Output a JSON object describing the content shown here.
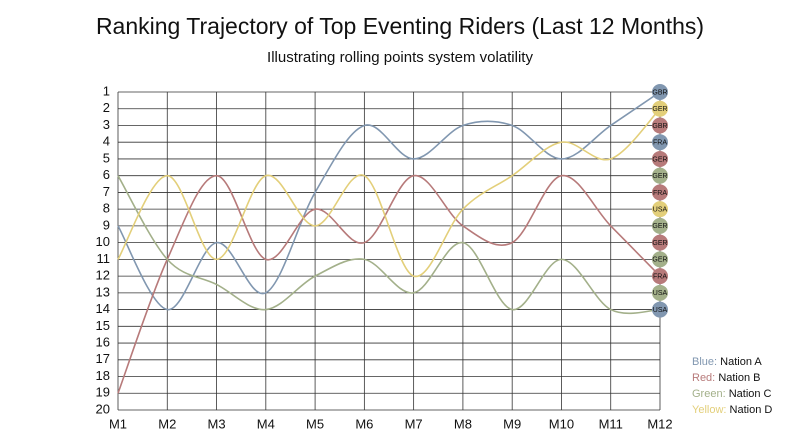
{
  "chart_data": {
    "type": "line",
    "title": "Ranking Trajectory of Top Eventing Riders (Last 12 Months)",
    "subtitle": "Illustrating rolling points system volatility",
    "categories": [
      "M1",
      "M2",
      "M3",
      "M4",
      "M5",
      "M6",
      "M7",
      "M8",
      "M9",
      "M10",
      "M11",
      "M12"
    ],
    "ylim": [
      1,
      20
    ],
    "yticks": [
      1,
      2,
      3,
      4,
      5,
      6,
      7,
      8,
      9,
      10,
      11,
      12,
      13,
      14,
      15,
      16,
      17,
      18,
      19,
      20
    ],
    "y_inverted": true,
    "grid": true,
    "series": [
      {
        "name": "Nation A",
        "color_label": "Blue:",
        "color": "#8197b0",
        "values": [
          9,
          14,
          10,
          13,
          7,
          3,
          5,
          3,
          3,
          5,
          3,
          1
        ]
      },
      {
        "name": "Nation B",
        "color_label": "Red:",
        "color": "#b77a7a",
        "values": [
          19,
          11,
          6,
          11,
          8,
          10,
          6,
          9,
          10,
          6,
          9,
          12
        ]
      },
      {
        "name": "Nation C",
        "color_label": "Green:",
        "color": "#a3b08a",
        "values": [
          6,
          11,
          12.5,
          14,
          12,
          11,
          13,
          10,
          14,
          11,
          14,
          14
        ]
      },
      {
        "name": "Nation D",
        "color_label": "Yellow:",
        "color": "#e3cf7a",
        "values": [
          11,
          6,
          11,
          6,
          9,
          6,
          12,
          8,
          6,
          4,
          5,
          2
        ]
      }
    ],
    "end_markers": [
      {
        "label": "GBR",
        "rank": 1,
        "color": "#8197b0"
      },
      {
        "label": "GER",
        "rank": 2,
        "color": "#e3cf7a"
      },
      {
        "label": "GBR",
        "rank": 3,
        "color": "#b77a7a"
      },
      {
        "label": "FRA",
        "rank": 4,
        "color": "#8197b0"
      },
      {
        "label": "GER",
        "rank": 5,
        "color": "#b77a7a"
      },
      {
        "label": "GER",
        "rank": 6,
        "color": "#a3b08a"
      },
      {
        "label": "FRA",
        "rank": 7,
        "color": "#b77a7a"
      },
      {
        "label": "USA",
        "rank": 8,
        "color": "#e3cf7a"
      },
      {
        "label": "GER",
        "rank": 9,
        "color": "#a3b08a"
      },
      {
        "label": "GER",
        "rank": 10,
        "color": "#b77a7a"
      },
      {
        "label": "GER",
        "rank": 11,
        "color": "#a3b08a"
      },
      {
        "label": "FRA",
        "rank": 12,
        "color": "#b77a7a"
      },
      {
        "label": "USA",
        "rank": 13,
        "color": "#a3b08a"
      },
      {
        "label": "USA",
        "rank": 14,
        "color": "#8197b0"
      }
    ]
  }
}
